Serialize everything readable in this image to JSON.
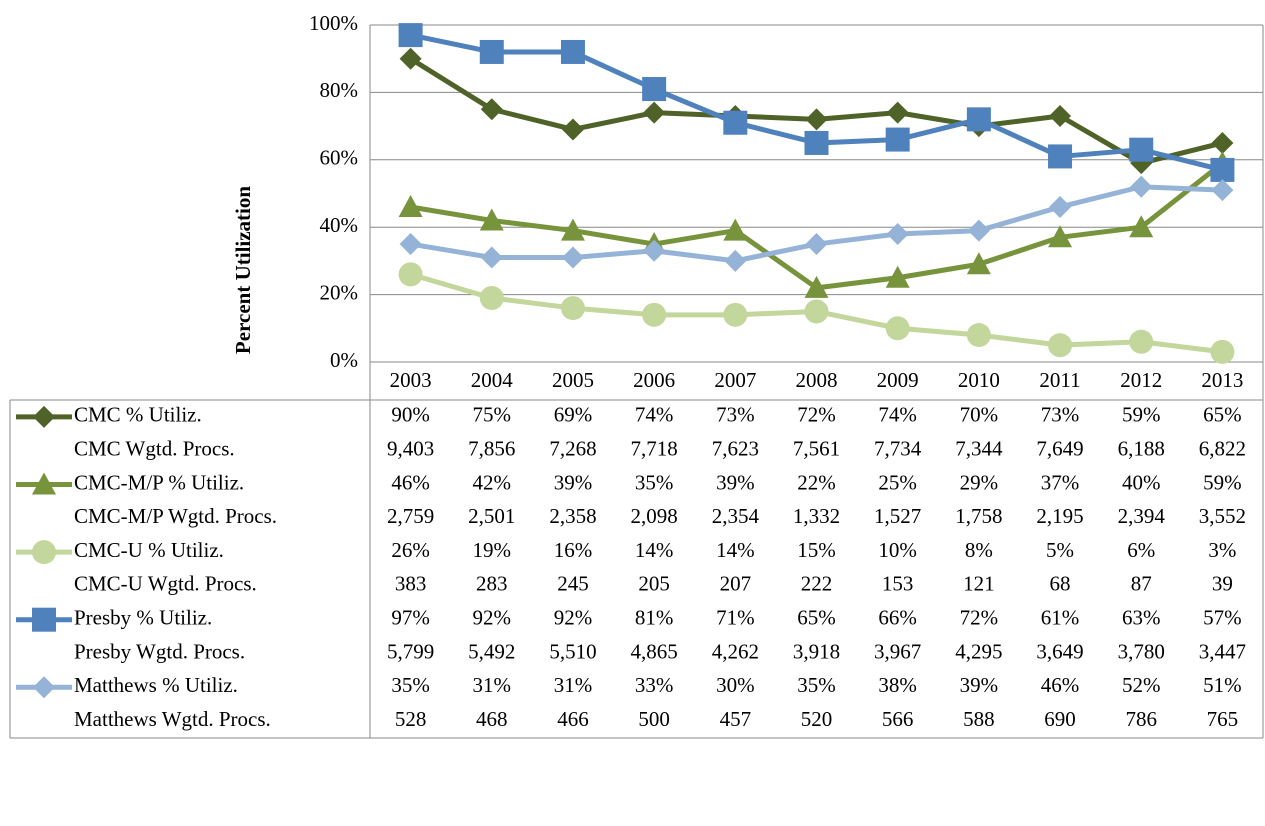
{
  "chart_data": {
    "type": "line",
    "y_axis_label": "Percent Utilization",
    "categories": [
      "2003",
      "2004",
      "2005",
      "2006",
      "2007",
      "2008",
      "2009",
      "2010",
      "2011",
      "2012",
      "2013"
    ],
    "ylim": [
      0,
      100
    ],
    "yticks": [
      {
        "value": 0,
        "label": "0%"
      },
      {
        "value": 20,
        "label": "20%"
      },
      {
        "value": 40,
        "label": "40%"
      },
      {
        "value": 60,
        "label": "60%"
      },
      {
        "value": 80,
        "label": "80%"
      },
      {
        "value": 100,
        "label": "100%"
      }
    ],
    "grid": true,
    "series": [
      {
        "name": "CMC % Utiliz.",
        "color": "#4f6228",
        "marker": "diamond",
        "values": [
          90,
          75,
          69,
          74,
          73,
          72,
          74,
          70,
          73,
          59,
          65
        ],
        "value_labels": [
          "90%",
          "75%",
          "69%",
          "74%",
          "73%",
          "72%",
          "74%",
          "70%",
          "73%",
          "59%",
          "65%"
        ]
      },
      {
        "name": "CMC-M/P % Utiliz.",
        "color": "#77933c",
        "marker": "triangle",
        "values": [
          46,
          42,
          39,
          35,
          39,
          22,
          25,
          29,
          37,
          40,
          59
        ],
        "value_labels": [
          "46%",
          "42%",
          "39%",
          "35%",
          "39%",
          "22%",
          "25%",
          "29%",
          "37%",
          "40%",
          "59%"
        ]
      },
      {
        "name": "CMC-U % Utiliz.",
        "color": "#c3d69b",
        "marker": "circle",
        "values": [
          26,
          19,
          16,
          14,
          14,
          15,
          10,
          8,
          5,
          6,
          3
        ],
        "value_labels": [
          "26%",
          "19%",
          "16%",
          "14%",
          "14%",
          "15%",
          "10%",
          "8%",
          "5%",
          "6%",
          "3%"
        ]
      },
      {
        "name": "Presby % Utiliz.",
        "color": "#4f81bd",
        "marker": "square",
        "values": [
          97,
          92,
          92,
          81,
          71,
          65,
          66,
          72,
          61,
          63,
          57
        ],
        "value_labels": [
          "97%",
          "92%",
          "92%",
          "81%",
          "71%",
          "65%",
          "66%",
          "72%",
          "61%",
          "63%",
          "57%"
        ]
      },
      {
        "name": "Matthews % Utiliz.",
        "color": "#95b3d7",
        "marker": "diamond",
        "values": [
          35,
          31,
          31,
          33,
          30,
          35,
          38,
          39,
          46,
          52,
          51
        ],
        "value_labels": [
          "35%",
          "31%",
          "31%",
          "33%",
          "30%",
          "35%",
          "38%",
          "39%",
          "46%",
          "52%",
          "51%"
        ]
      }
    ],
    "table_rows": [
      {
        "name": "CMC Wgtd. Procs.",
        "values": [
          "9,403",
          "7,856",
          "7,268",
          "7,718",
          "7,623",
          "7,561",
          "7,734",
          "7,344",
          "7,649",
          "6,188",
          "6,822"
        ]
      },
      {
        "name": "CMC-M/P Wgtd. Procs.",
        "values": [
          "2,759",
          "2,501",
          "2,358",
          "2,098",
          "2,354",
          "1,332",
          "1,527",
          "1,758",
          "2,195",
          "2,394",
          "3,552"
        ]
      },
      {
        "name": "CMC-U Wgtd. Procs.",
        "values": [
          "383",
          "283",
          "245",
          "205",
          "207",
          "222",
          "153",
          "121",
          "68",
          "87",
          "39"
        ]
      },
      {
        "name": "Presby Wgtd. Procs.",
        "values": [
          "5,799",
          "5,492",
          "5,510",
          "4,865",
          "4,262",
          "3,918",
          "3,967",
          "4,295",
          "3,649",
          "3,780",
          "3,447"
        ]
      },
      {
        "name": "Matthews Wgtd. Procs.",
        "values": [
          "528",
          "468",
          "466",
          "500",
          "457",
          "520",
          "566",
          "588",
          "690",
          "786",
          "765"
        ]
      }
    ]
  }
}
